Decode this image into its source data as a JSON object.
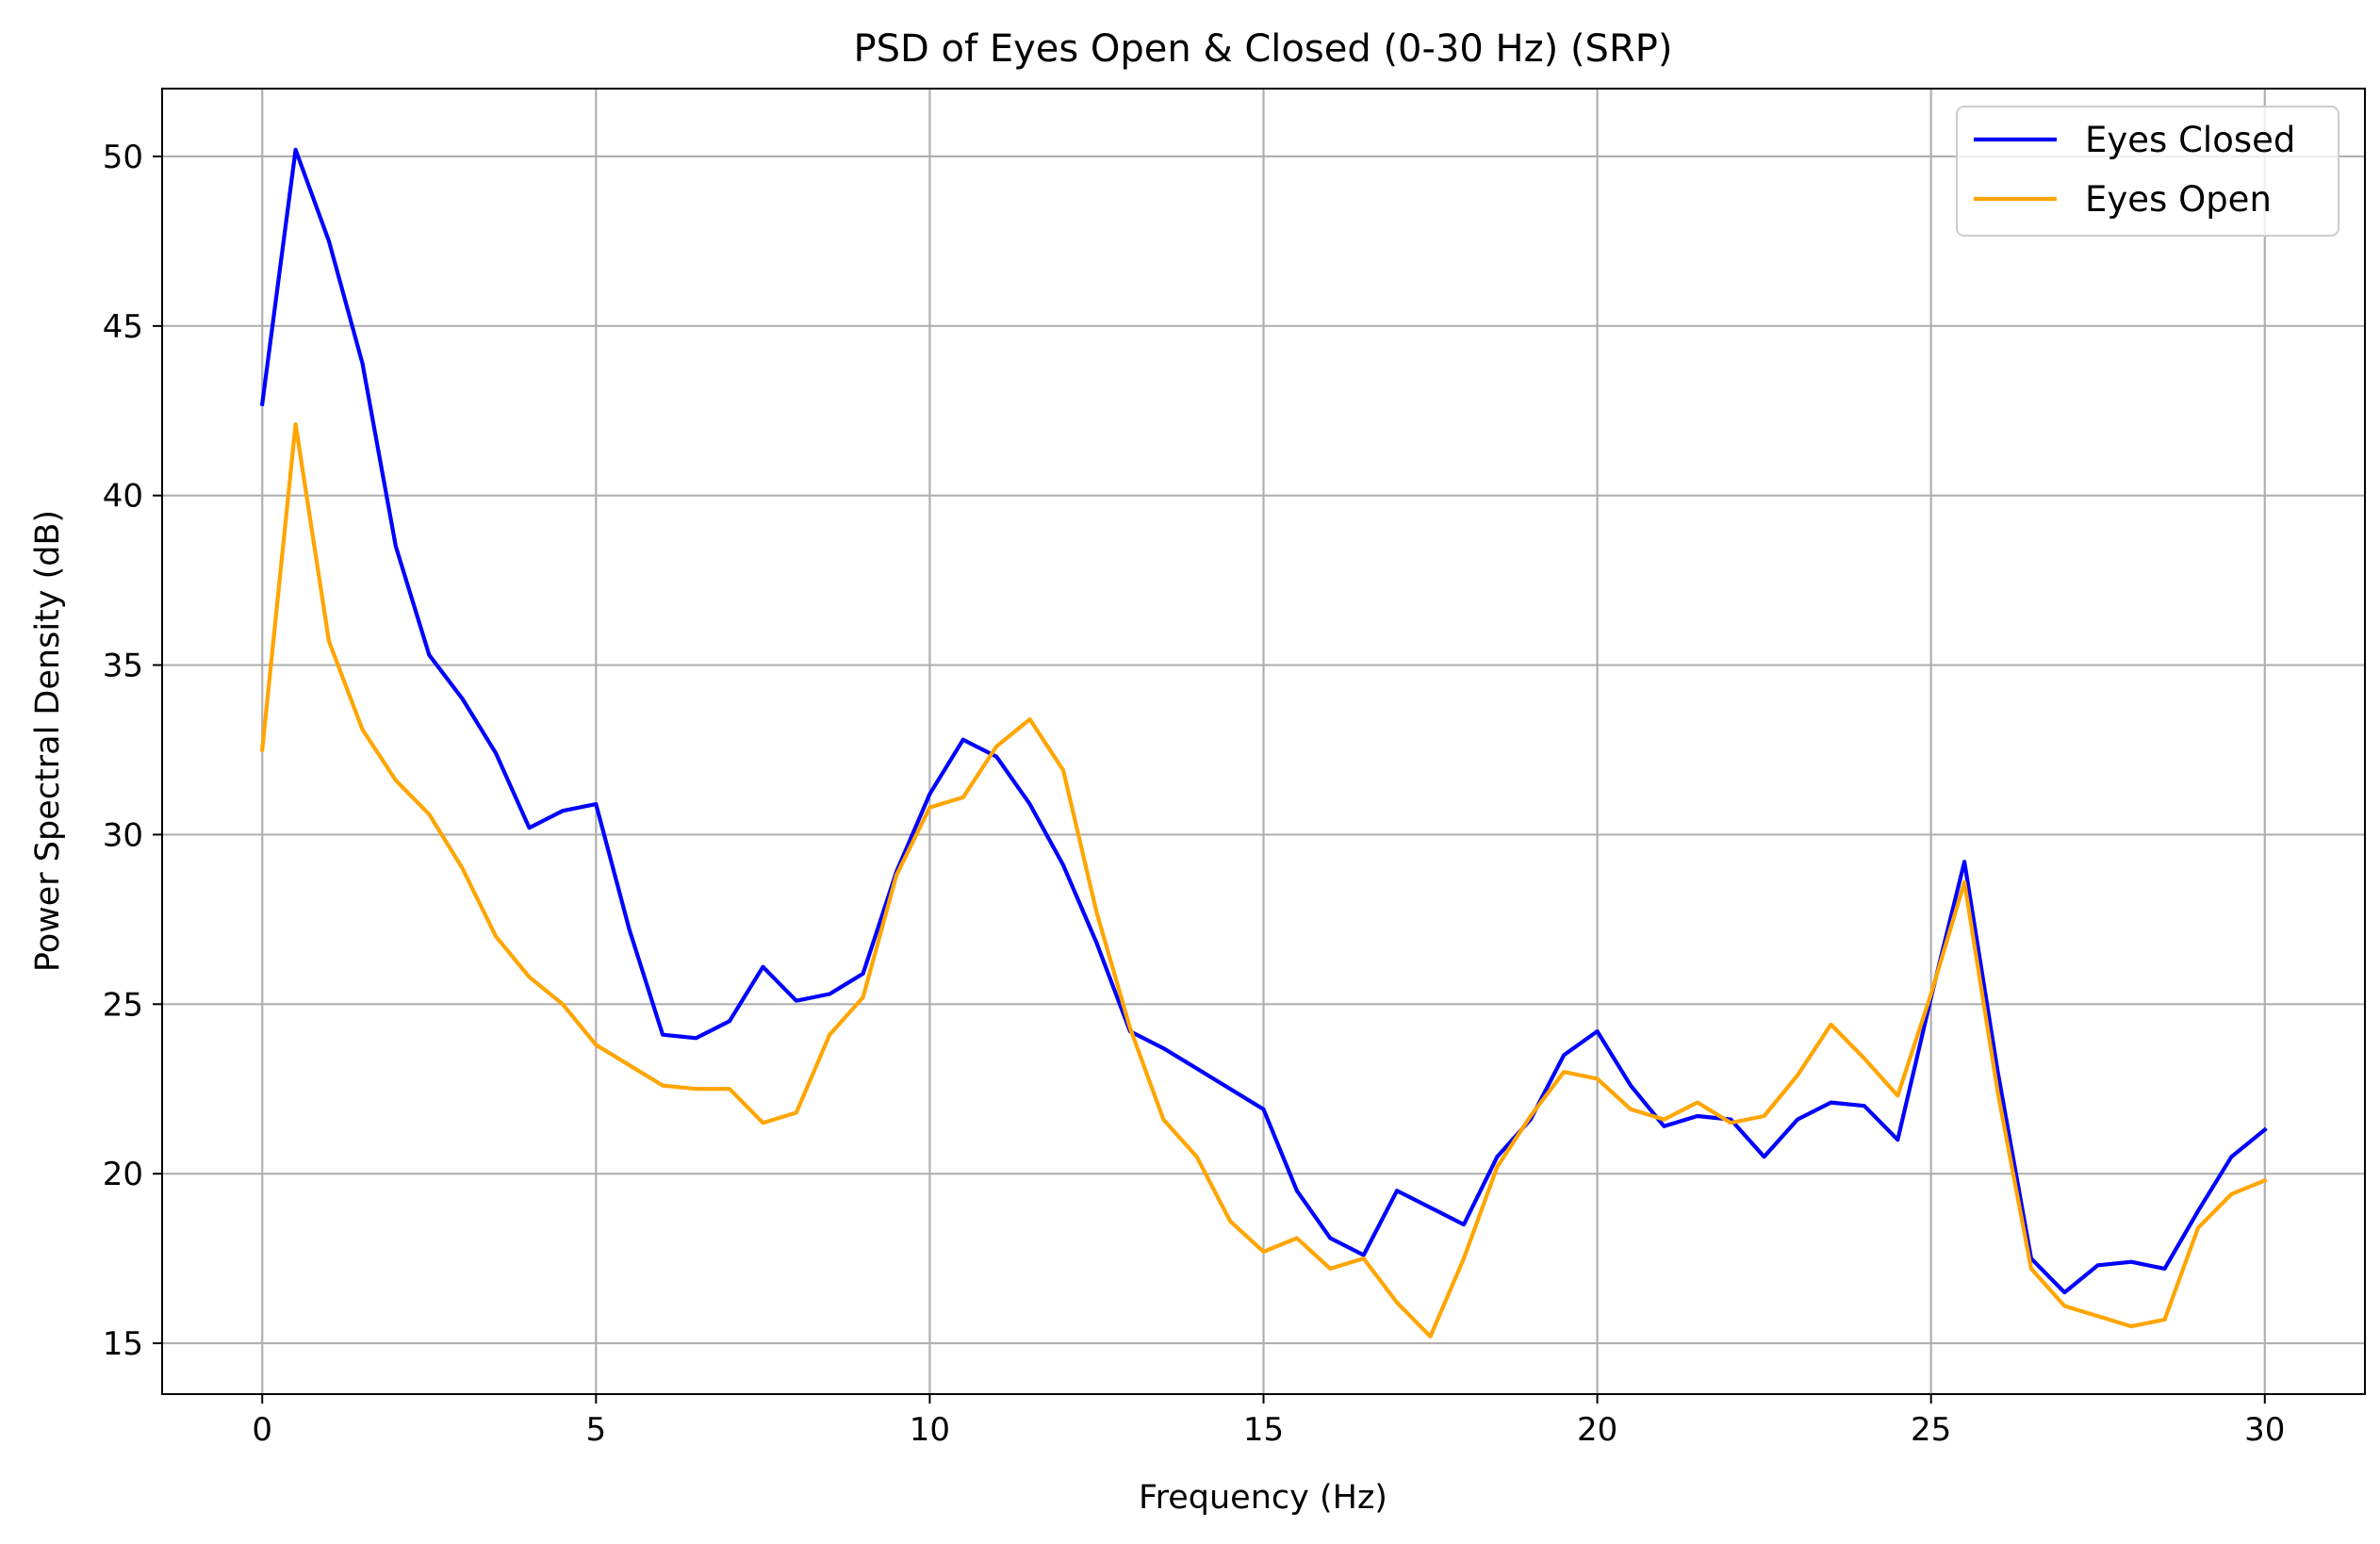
{
  "chart_data": {
    "type": "line",
    "title": "PSD of Eyes Open & Closed (0-30 Hz) (SRP)",
    "xlabel": "Frequency (Hz)",
    "ylabel": "Power Spectral Density (dB)",
    "xlim": [
      -1.5,
      31.5
    ],
    "ylim": [
      13.5,
      52.0
    ],
    "xticks": [
      0,
      5,
      10,
      15,
      20,
      25,
      30
    ],
    "yticks": [
      15,
      20,
      25,
      30,
      35,
      40,
      45,
      50
    ],
    "grid": true,
    "legend_position": "top-right",
    "x": [
      0,
      0.5,
      1,
      1.5,
      2,
      2.5,
      3,
      3.5,
      4,
      4.5,
      5,
      5.5,
      6,
      6.5,
      7,
      7.5,
      8,
      8.5,
      9,
      9.5,
      10,
      10.5,
      11,
      11.5,
      12,
      12.5,
      13,
      13.5,
      14,
      14.5,
      15,
      15.5,
      16,
      16.5,
      17,
      17.5,
      18,
      18.5,
      19,
      19.5,
      20,
      20.5,
      21,
      21.5,
      22,
      22.5,
      23,
      23.5,
      24,
      24.5,
      25,
      25.5,
      26,
      26.5,
      27,
      27.5,
      28,
      28.5,
      29,
      29.5,
      30
    ],
    "series": [
      {
        "name": "Eyes Closed",
        "color": "#0000ff",
        "values": [
          42.7,
          50.2,
          47.5,
          43.9,
          38.5,
          35.3,
          34.0,
          32.4,
          30.2,
          30.7,
          30.9,
          27.2,
          24.1,
          24.0,
          24.5,
          26.1,
          25.1,
          25.3,
          25.9,
          28.9,
          31.2,
          32.8,
          32.3,
          30.9,
          29.1,
          26.8,
          24.2,
          23.7,
          23.1,
          22.5,
          21.9,
          19.5,
          18.1,
          17.6,
          19.5,
          19.0,
          18.5,
          20.5,
          21.6,
          23.5,
          24.2,
          22.6,
          21.4,
          21.7,
          21.6,
          20.5,
          21.6,
          22.1,
          22.0,
          21.0,
          25.2,
          29.2,
          23.0,
          17.5,
          16.5,
          17.3,
          17.4,
          17.2,
          18.9,
          20.5,
          21.3
        ]
      },
      {
        "name": "Eyes Open",
        "color": "#ffa500",
        "values": [
          32.5,
          42.1,
          35.7,
          33.1,
          31.6,
          30.6,
          29.0,
          27.0,
          25.8,
          25.0,
          23.8,
          23.2,
          22.6,
          22.5,
          22.5,
          21.5,
          21.8,
          24.1,
          25.2,
          28.8,
          30.8,
          31.1,
          32.6,
          33.4,
          31.9,
          27.7,
          24.3,
          21.6,
          20.5,
          18.6,
          17.7,
          18.1,
          17.2,
          17.5,
          16.2,
          15.2,
          17.5,
          20.2,
          21.7,
          23.0,
          22.8,
          21.9,
          21.6,
          22.1,
          21.5,
          21.7,
          22.9,
          24.4,
          23.4,
          22.3,
          25.3,
          28.6,
          22.4,
          17.2,
          16.1,
          15.8,
          15.5,
          15.7,
          18.4,
          19.4,
          19.8
        ]
      }
    ]
  }
}
